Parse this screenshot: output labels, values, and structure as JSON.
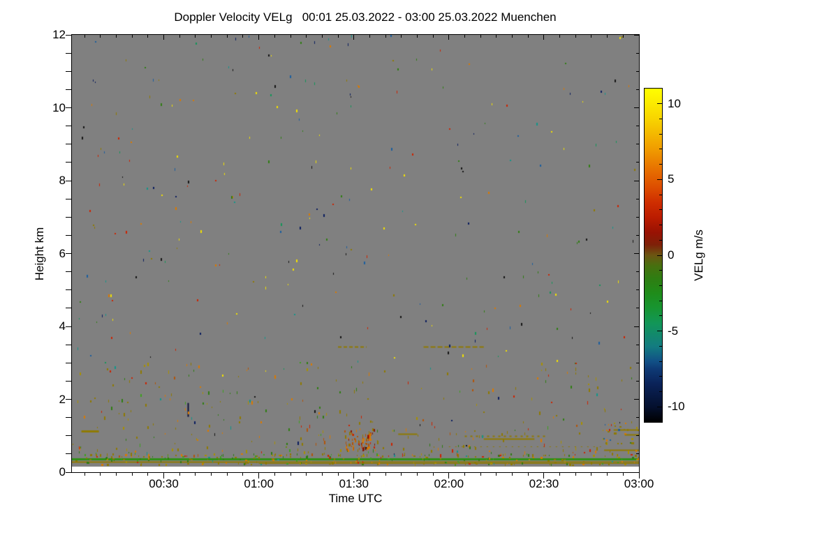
{
  "title": "Doppler Velocity VELg   00:01 25.03.2022 - 03:00 25.03.2022 Muenchen",
  "chart_data": {
    "type": "heatmap",
    "title": "Doppler Velocity VELg   00:01 25.03.2022 - 03:00 25.03.2022 Muenchen",
    "station": "Muenchen",
    "date": "25.03.2022",
    "time_span_utc": [
      "00:01",
      "03:00"
    ],
    "xlabel": "Time UTC",
    "ylabel": "Height km",
    "background_color": "#ffffff",
    "no_data_color": "#808080",
    "grid": false,
    "x_axis": {
      "label": "Time UTC",
      "start_min": 1,
      "end_min": 180,
      "ticks": [
        {
          "t": 30,
          "label": "00:30"
        },
        {
          "t": 60,
          "label": "01:00"
        },
        {
          "t": 90,
          "label": "01:30"
        },
        {
          "t": 120,
          "label": "02:00"
        },
        {
          "t": 150,
          "label": "02:30"
        },
        {
          "t": 180,
          "label": "03:00"
        }
      ],
      "minor_interval_min": 5
    },
    "y_axis": {
      "label": "Height km",
      "range_km": [
        0,
        12
      ],
      "ticks": [
        {
          "v": 0,
          "label": "0"
        },
        {
          "v": 2,
          "label": "2"
        },
        {
          "v": 4,
          "label": "4"
        },
        {
          "v": 6,
          "label": "6"
        },
        {
          "v": 8,
          "label": "8"
        },
        {
          "v": 10,
          "label": "10"
        },
        {
          "v": 12,
          "label": "12"
        }
      ],
      "minor_interval_km": 0.5,
      "lowest_data_height_km": 0.15
    },
    "colorbar": {
      "label": "VELg m/s",
      "range": [
        -11,
        11
      ],
      "ticks": [
        {
          "v": 10,
          "label": "10"
        },
        {
          "v": 5,
          "label": "5"
        },
        {
          "v": 0,
          "label": "0"
        },
        {
          "v": -5,
          "label": "-5"
        },
        {
          "v": -10,
          "label": "-10"
        }
      ],
      "minor_interval": 1,
      "gradient_stops": [
        [
          -11,
          "#000000"
        ],
        [
          -10,
          "#04102e"
        ],
        [
          -8.5,
          "#0a2258"
        ],
        [
          -7.5,
          "#0e3a75"
        ],
        [
          -7,
          "#115086"
        ],
        [
          -6,
          "#137c80"
        ],
        [
          -4.5,
          "#129658"
        ],
        [
          -3.5,
          "#179532"
        ],
        [
          -2.5,
          "#1f8c1a"
        ],
        [
          -1.5,
          "#2f7d12"
        ],
        [
          -0.7,
          "#47700f"
        ],
        [
          0,
          "#6b5612"
        ],
        [
          0.7,
          "#7e2008"
        ],
        [
          1.5,
          "#981203"
        ],
        [
          2.5,
          "#bb1c00"
        ],
        [
          3.5,
          "#cf2e00"
        ],
        [
          4.5,
          "#dd4e00"
        ],
        [
          5.5,
          "#e66b00"
        ],
        [
          7,
          "#f09c00"
        ],
        [
          9,
          "#f8d400"
        ],
        [
          11,
          "#ffff00"
        ]
      ]
    },
    "palette": {
      "olive": "#8f7a00",
      "dark_yellow": "#a89000",
      "orange": "#d97a00",
      "burnt_orange": "#b35408",
      "red": "#cc2200",
      "dark_red": "#8a1804",
      "green": "#2f7d12",
      "bright_green": "#3da01e",
      "teal": "#12968a",
      "sea_green": "#129658",
      "blue": "#1b5e9e",
      "navy": "#0a1c5e",
      "black": "#141414",
      "yellow": "#f2e000"
    },
    "features": [
      {
        "type": "hline",
        "name": "ground-clutter-green-line",
        "t": [
          1,
          180
        ],
        "h": 0.36,
        "thickness": 3,
        "color": "#2f9016"
      },
      {
        "type": "hline",
        "name": "ground-clutter-olive-line",
        "t": [
          1,
          180
        ],
        "h": 0.295,
        "thickness": 2,
        "color": "#8f7a00"
      },
      {
        "type": "hline",
        "name": "low-olive-trace",
        "t": [
          60,
          180
        ],
        "h": 0.25,
        "thickness": 1,
        "color": "#8f7a00"
      },
      {
        "type": "hline",
        "name": "olive-dash-left-1km",
        "t": [
          4,
          9.5
        ],
        "h": 1.12,
        "thickness": 3,
        "color": "#8f7a00"
      },
      {
        "type": "hline",
        "name": "olive-dashes-0130-3p5km",
        "t": [
          85,
          94
        ],
        "h": 3.45,
        "thickness": 2,
        "color": "#8f7a00",
        "dash": [
          5,
          3
        ]
      },
      {
        "type": "hline",
        "name": "olive-dashes-0200-3p5km",
        "t": [
          112,
          131
        ],
        "h": 3.45,
        "thickness": 2,
        "color": "#8f7a00",
        "dash": [
          7,
          3
        ]
      },
      {
        "type": "hline",
        "name": "olive-dash-0145-1km",
        "t": [
          104,
          110
        ],
        "h": 1.05,
        "thickness": 2,
        "color": "#8f7a00"
      },
      {
        "type": "hline",
        "name": "olive-dotted-0205-1km",
        "t": [
          125,
          151
        ],
        "h": 1.0,
        "thickness": 2,
        "color": "#8f7a00",
        "dash": [
          3,
          5
        ]
      },
      {
        "type": "hline",
        "name": "olive-line-0215-0p9km",
        "t": [
          131,
          147
        ],
        "h": 0.92,
        "thickness": 2,
        "color": "#8f7a00"
      },
      {
        "type": "hline",
        "name": "olive-dotted-0p7km",
        "t": [
          120,
          168
        ],
        "h": 0.7,
        "thickness": 1,
        "color": "#8f7a00",
        "dash": [
          2,
          7
        ]
      },
      {
        "type": "hline",
        "name": "olive-dash-right-1p2km",
        "t": [
          172,
          180
        ],
        "h": 1.17,
        "thickness": 2,
        "color": "#8f7a00"
      },
      {
        "type": "hline",
        "name": "olive-dash-right-1km",
        "t": [
          175.5,
          180
        ],
        "h": 1.03,
        "thickness": 2,
        "color": "#8f7a00"
      },
      {
        "type": "hline",
        "name": "olive-dash-right-0p6km",
        "t": [
          169,
          180
        ],
        "h": 0.62,
        "thickness": 2,
        "color": "#8f7a00"
      },
      {
        "type": "vline",
        "name": "dark-streak-0038",
        "t": 37.7,
        "h": [
          1.52,
          1.9
        ],
        "thickness": 2,
        "color": "#0e1038"
      }
    ],
    "speckle_layers": [
      {
        "name": "upper-sparse-noise",
        "count": 270,
        "t": [
          1,
          180
        ],
        "h": [
          2.6,
          11.95
        ],
        "bias": 1,
        "colors": [
          "red",
          "orange",
          "yellow",
          "black",
          "navy",
          "teal",
          "green",
          "olive",
          "blue",
          "sea_green"
        ],
        "weights": [
          2,
          2,
          1.8,
          1.8,
          1.2,
          1.2,
          1.5,
          1.5,
          0.8,
          0.8
        ],
        "w": [
          1,
          2
        ],
        "ht": [
          2,
          4
        ]
      },
      {
        "name": "low-dense-noise",
        "count": 340,
        "t": [
          1,
          180
        ],
        "h": [
          0.4,
          3.0
        ],
        "bias": 1.7,
        "colors": [
          "olive",
          "green",
          "orange",
          "dark_yellow",
          "red",
          "burnt_orange",
          "teal",
          "bright_green",
          "black",
          "navy"
        ],
        "weights": [
          5,
          2.5,
          2.2,
          2,
          1.3,
          1.2,
          0.6,
          1.4,
          0.3,
          0.3
        ],
        "w": [
          1,
          2
        ],
        "ht": [
          2,
          5
        ]
      },
      {
        "name": "surface-echo-dots",
        "count": 240,
        "t": [
          1,
          180
        ],
        "h": [
          0.16,
          0.47
        ],
        "bias": 1,
        "colors": [
          "olive",
          "green",
          "orange",
          "dark_yellow",
          "red",
          "teal",
          "bright_green"
        ],
        "weights": [
          5,
          2.5,
          1.8,
          2,
          0.8,
          0.4,
          1.5
        ],
        "w": [
          1,
          3
        ],
        "ht": [
          2,
          3
        ]
      },
      {
        "name": "precip-cluster-0130",
        "count": 75,
        "t": [
          87,
          97
        ],
        "h": [
          0.55,
          1.15
        ],
        "bias": 1,
        "colors": [
          "burnt_orange",
          "orange",
          "dark_red",
          "olive",
          "red"
        ],
        "weights": [
          4,
          3,
          1.5,
          1.5,
          1
        ],
        "w": [
          1,
          2
        ],
        "ht": [
          2,
          5
        ]
      },
      {
        "name": "right-edge-cluster",
        "count": 30,
        "t": [
          168,
          179.5
        ],
        "h": [
          0.75,
          1.35
        ],
        "bias": 1,
        "colors": [
          "olive",
          "dark_yellow",
          "red",
          "blue",
          "orange"
        ],
        "weights": [
          4,
          2,
          1,
          0.7,
          1
        ],
        "w": [
          1,
          3
        ],
        "ht": [
          2,
          3
        ]
      }
    ],
    "seed": 1337
  }
}
